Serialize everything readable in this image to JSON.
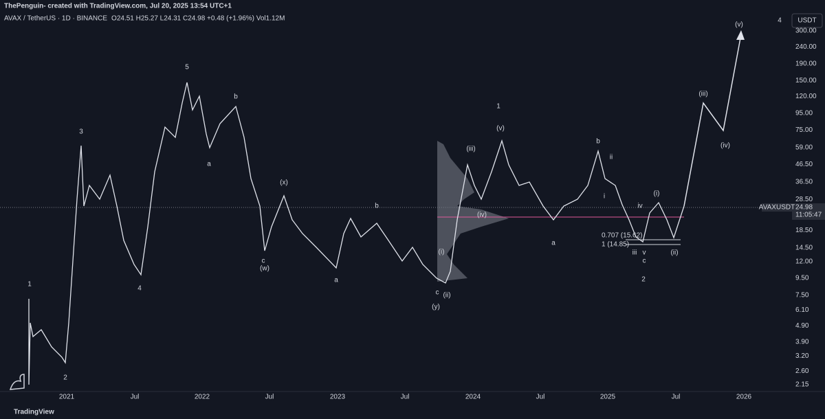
{
  "header": {
    "credit": "ThePenguin- created with TradingView.com, Jul 20, 2025 13:54 UTC+1",
    "symbol": "AVAX / TetherUS · 1D · BINANCE",
    "ohlc": "O24.51 H25.27 L24.31 C24.98 +0.48 (+1.96%) Vol1.12M"
  },
  "price_axis": {
    "currency": "USDT",
    "ticks": [
      "300.00",
      "240.00",
      "190.00",
      "150.00",
      "120.00",
      "95.00",
      "75.00",
      "59.00",
      "46.50",
      "36.50",
      "28.50",
      "18.50",
      "14.50",
      "12.00",
      "9.50",
      "7.50",
      "6.10",
      "4.90",
      "3.90",
      "3.20",
      "2.60",
      "2.15"
    ],
    "badge": {
      "symbol": "AVAXUSDT",
      "price": "24.98",
      "countdown": "11:05:47"
    }
  },
  "time_axis": {
    "labels": [
      "2021",
      "Jul",
      "2022",
      "Jul",
      "2023",
      "Jul",
      "2024",
      "Jul",
      "2025",
      "Jul",
      "2026"
    ]
  },
  "wave_labels": [
    "1",
    "2",
    "3",
    "4",
    "5",
    "1",
    "2",
    "4",
    "a",
    "b",
    "c",
    "(w)",
    "(x)",
    "a",
    "b",
    "c",
    "(y)",
    "a",
    "b",
    "c",
    "iv",
    "v",
    "i",
    "ii",
    "iii",
    "(i)",
    "(ii)",
    "(iii)",
    "(iv)",
    "(v)",
    "(i)",
    "(ii)",
    "(iii)",
    "(iv)",
    "(v)"
  ],
  "fib_labels": [
    "0.707 (15.62)",
    "1 (14.85)"
  ],
  "footer": {
    "brand": "TradingView"
  }
}
